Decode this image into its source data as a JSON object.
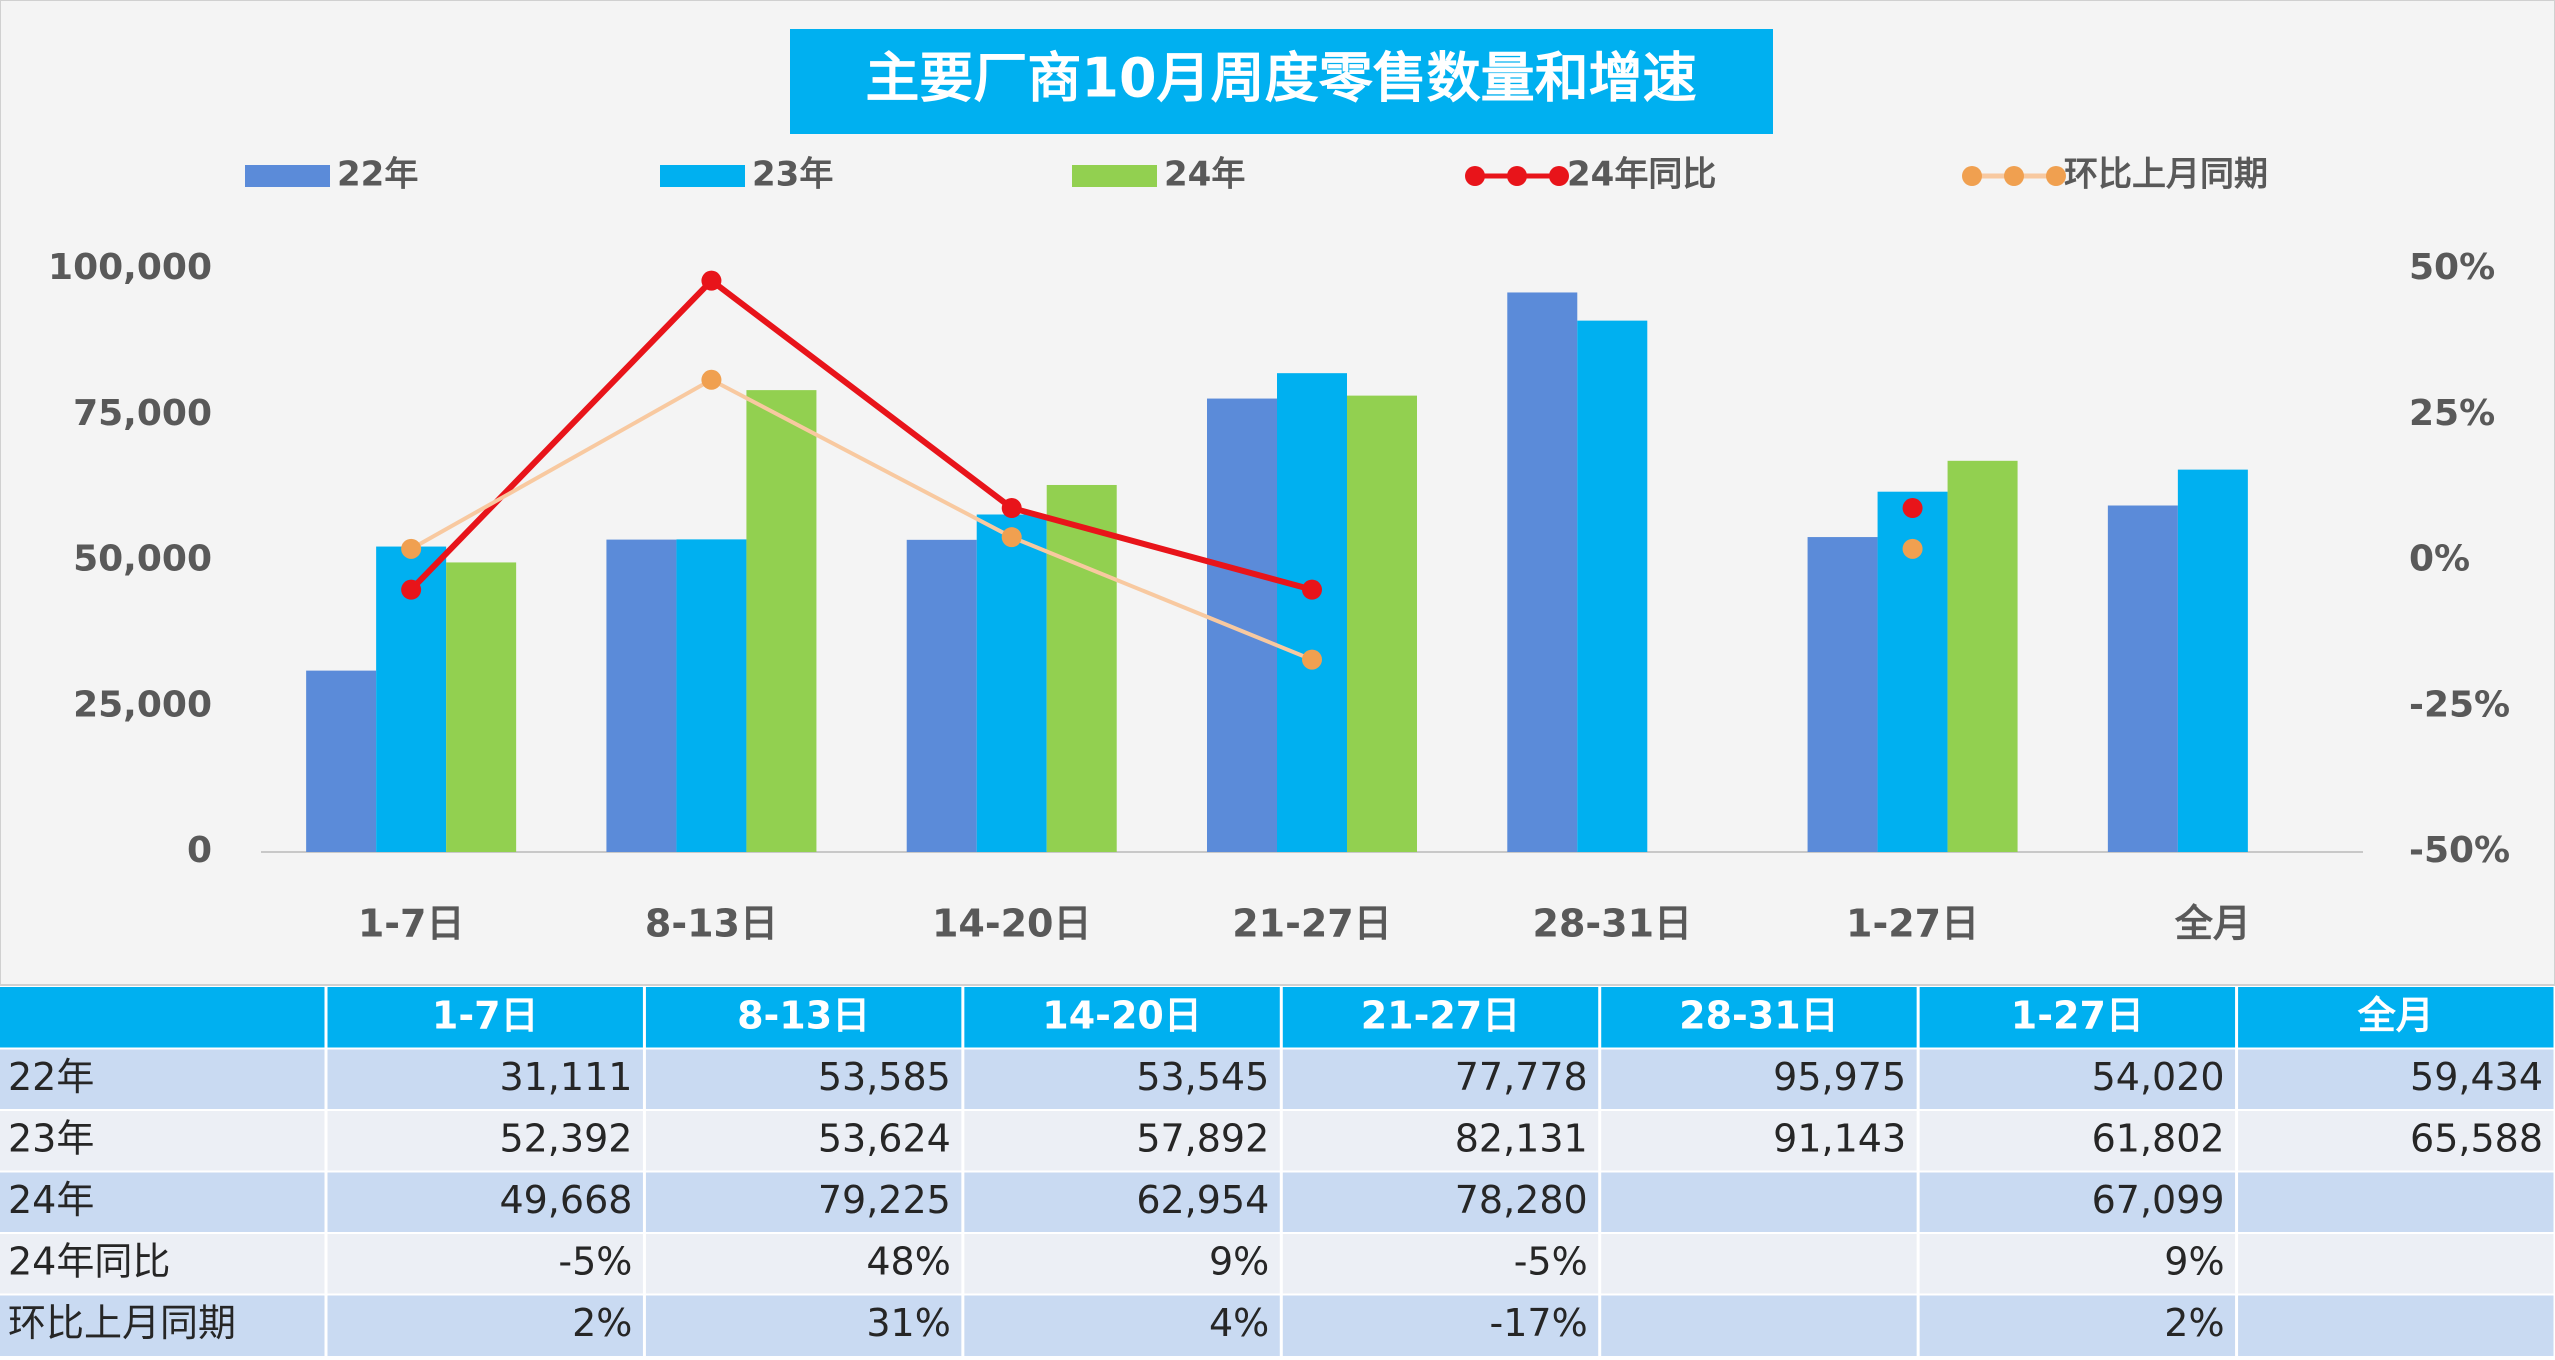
{
  "chart_data": {
    "type": "bar",
    "title": "主要厂商10月周度零售数量和增速",
    "categories": [
      "1-7日",
      "8-13日",
      "14-20日",
      "21-27日",
      "28-31日",
      "1-27日",
      "全月"
    ],
    "series": [
      {
        "name": "22年",
        "type": "bar",
        "color": "#5b8bd9",
        "values": [
          31111,
          53585,
          53545,
          77778,
          95975,
          54020,
          59434
        ],
        "value_labels": [
          "31,111",
          "53,585",
          "53,545",
          "77,778",
          "95,975",
          "54,020",
          "59,434"
        ]
      },
      {
        "name": "23年",
        "type": "bar",
        "color": "#00b0f0",
        "values": [
          52392,
          53624,
          57892,
          82131,
          91143,
          61802,
          65588
        ],
        "value_labels": [
          "52,392",
          "53,624",
          "57,892",
          "82,131",
          "91,143",
          "61,802",
          "65,588"
        ]
      },
      {
        "name": "24年",
        "type": "bar",
        "color": "#92d050",
        "values": [
          49668,
          79225,
          62954,
          78280,
          null,
          67099,
          null
        ],
        "value_labels": [
          "49,668",
          "79,225",
          "62,954",
          "78,280",
          null,
          "67,099",
          null
        ]
      },
      {
        "name": "24年同比",
        "type": "line",
        "axis": "y2",
        "color": "#e8141a",
        "marker_color": "#e8141a",
        "values": [
          -5,
          48,
          9,
          -5,
          null,
          9,
          null
        ],
        "value_labels": [
          "-5%",
          "48%",
          "9%",
          "-5%",
          null,
          "9%",
          null
        ]
      },
      {
        "name": "环比上月同期",
        "type": "line",
        "axis": "y2",
        "color": "#f8c9a0",
        "marker_color": "#f0a050",
        "values": [
          2,
          31,
          4,
          -17,
          null,
          2,
          null
        ],
        "value_labels": [
          "2%",
          "31%",
          "4%",
          "-17%",
          null,
          "2%",
          null
        ]
      }
    ],
    "ylim": [
      0,
      100000
    ],
    "yticks": [
      0,
      {
        "value": 25000,
        "label": "25,000"
      },
      {
        "value": 50000,
        "label": "50,000"
      },
      {
        "value": 75000,
        "label": "75,000"
      },
      {
        "value": 100000,
        "label": "100,000"
      }
    ],
    "y2lim": [
      -50,
      50
    ],
    "y2ticks": [
      {
        "value": -50,
        "label": "-50%"
      },
      {
        "value": -25,
        "label": "-25%"
      },
      {
        "value": 0,
        "label": "0%"
      },
      {
        "value": 25,
        "label": "25%"
      },
      {
        "value": 50,
        "label": "50%"
      }
    ]
  }
}
